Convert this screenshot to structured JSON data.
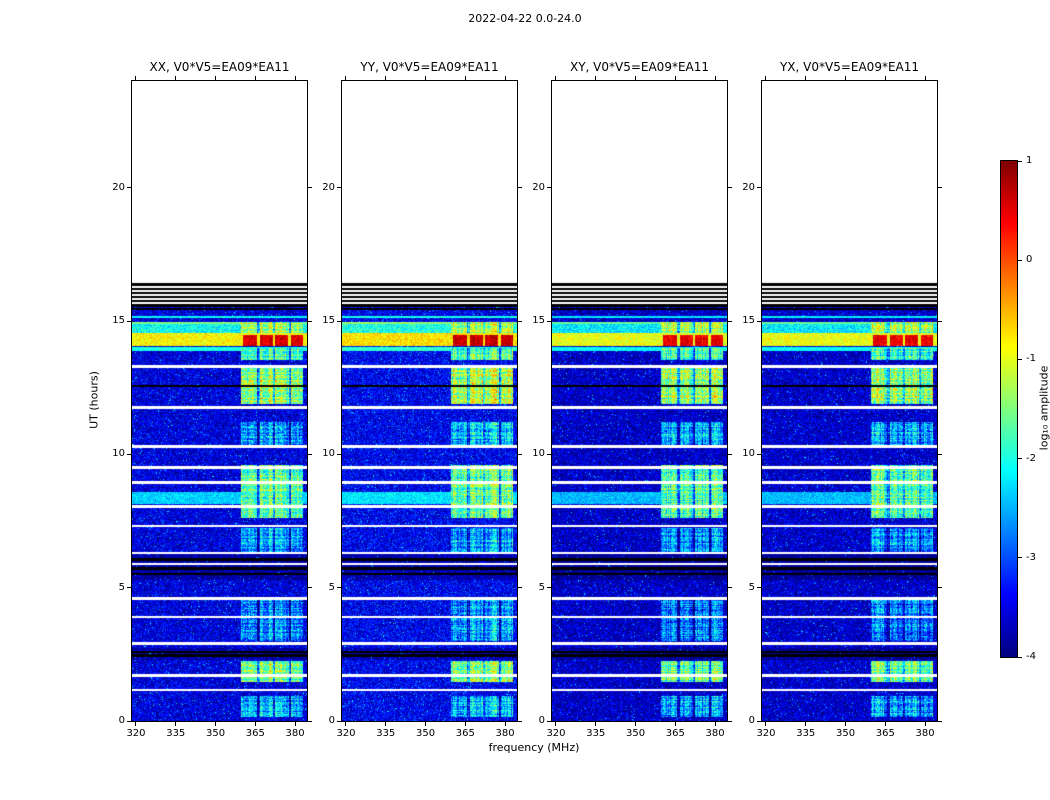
{
  "chart_data": {
    "type": "heatmap",
    "title": "2022-04-22 0.0-24.0",
    "xlabel": "frequency (MHz)",
    "ylabel": "UT (hours)",
    "x_range": [
      318.5,
      384.5
    ],
    "y_range": [
      0,
      24
    ],
    "x_ticks": [
      320,
      335,
      350,
      365,
      380
    ],
    "y_ticks": [
      0,
      5,
      10,
      15,
      20
    ],
    "colormap": "jet",
    "colorbar": {
      "label": "log₁₀ amplitude",
      "vmin": -4,
      "vmax": 1,
      "ticks": [
        1,
        0,
        -1,
        -2,
        -3,
        -4
      ]
    },
    "panels": [
      {
        "key": "xx",
        "title": "XX, V0*V5=EA09*EA11",
        "seed": 101,
        "gain": 0
      },
      {
        "key": "yy",
        "title": "YY, V0*V5=EA09*EA11",
        "seed": 202,
        "gain": 0.1
      },
      {
        "key": "xy",
        "title": "XY, V0*V5=EA09*EA11",
        "seed": 303,
        "gain": -0.12
      },
      {
        "key": "yx",
        "title": "YX, V0*V5=EA09*EA11",
        "seed": 404,
        "gain": -0.1
      }
    ],
    "features": {
      "data_top": 16.42,
      "black_band": [
        15.52,
        16.42
      ],
      "background": {
        "base": -3.55,
        "noise": 0.5,
        "speckle_prob": 0.05,
        "speckle_boost": 1.3
      },
      "white_lines": [
        [
          16.27,
          0.035
        ],
        [
          16.12,
          0.035
        ],
        [
          15.97,
          0.035
        ],
        [
          15.82,
          0.035
        ],
        [
          15.67,
          0.035
        ],
        [
          13.3,
          0.05
        ],
        [
          11.75,
          0.05
        ],
        [
          10.3,
          0.06
        ],
        [
          9.5,
          0.05
        ],
        [
          8.95,
          0.05
        ],
        [
          8.05,
          0.05
        ],
        [
          7.3,
          0.04
        ],
        [
          6.3,
          0.05
        ],
        [
          5.9,
          0.04
        ],
        [
          4.6,
          0.05
        ],
        [
          3.9,
          0.05
        ],
        [
          2.9,
          0.05
        ],
        [
          1.7,
          0.05
        ],
        [
          1.15,
          0.04
        ]
      ],
      "black_lines": [
        [
          15.45,
          0.04
        ],
        [
          12.55,
          0.04
        ],
        [
          6.05,
          0.05
        ],
        [
          5.72,
          0.04
        ],
        [
          5.5,
          0.04
        ],
        [
          2.6,
          0.04
        ],
        [
          2.45,
          0.05
        ]
      ],
      "value_lines": [
        {
          "t": 15.15,
          "w": 0.05,
          "level": -2.1
        },
        {
          "t": 14.92,
          "w": 0.05,
          "level": -1.5
        },
        {
          "t": 13.95,
          "w": 0.06,
          "level": -2.0
        }
      ],
      "dark_bands": [
        {
          "t0": 5.3,
          "t1": 6.25,
          "drop": 0.35
        },
        {
          "t0": 2.3,
          "t1": 2.75,
          "drop": 0.3
        }
      ],
      "bands": [
        {
          "t0": 14.05,
          "t1": 14.55,
          "level": -0.85,
          "var": 0.35
        },
        {
          "t0": 14.55,
          "t1": 14.95,
          "level": -2.1,
          "var": 0.45
        },
        {
          "t0": 8.15,
          "t1": 8.6,
          "level": -2.35,
          "var": 0.3
        }
      ],
      "rfi": {
        "f0": 359.5,
        "f1": 383,
        "gaps": [
          [
            365.6,
            366.6
          ],
          [
            371.6,
            372.6
          ],
          [
            377.6,
            378.6
          ]
        ],
        "segments": [
          {
            "t0": 0.15,
            "t1": 0.95,
            "level": -2.5,
            "var": 0.6
          },
          {
            "t0": 1.45,
            "t1": 2.25,
            "level": -1.55,
            "var": 0.55
          },
          {
            "t0": 3.0,
            "t1": 4.55,
            "level": -2.7,
            "var": 0.6
          },
          {
            "t0": 6.35,
            "t1": 7.25,
            "level": -2.6,
            "var": 0.55
          },
          {
            "t0": 7.6,
            "t1": 9.6,
            "level": -1.65,
            "var": 0.6
          },
          {
            "t0": 10.35,
            "t1": 11.2,
            "level": -2.5,
            "var": 0.6
          },
          {
            "t0": 11.9,
            "t1": 13.25,
            "level": -1.35,
            "var": 0.6
          },
          {
            "t0": 13.55,
            "t1": 14.0,
            "level": -1.8,
            "var": 0.5
          },
          {
            "t0": 14.55,
            "t1": 14.95,
            "level": -1.35,
            "var": 0.5
          }
        ]
      },
      "hot": {
        "t0": 14.08,
        "t1": 14.48,
        "level": 0.55,
        "var": 0.3,
        "blobs": [
          [
            360.5,
            365.5
          ],
          [
            366.6,
            371.5
          ],
          [
            372.6,
            377.5
          ],
          [
            378.6,
            383
          ]
        ]
      }
    }
  }
}
